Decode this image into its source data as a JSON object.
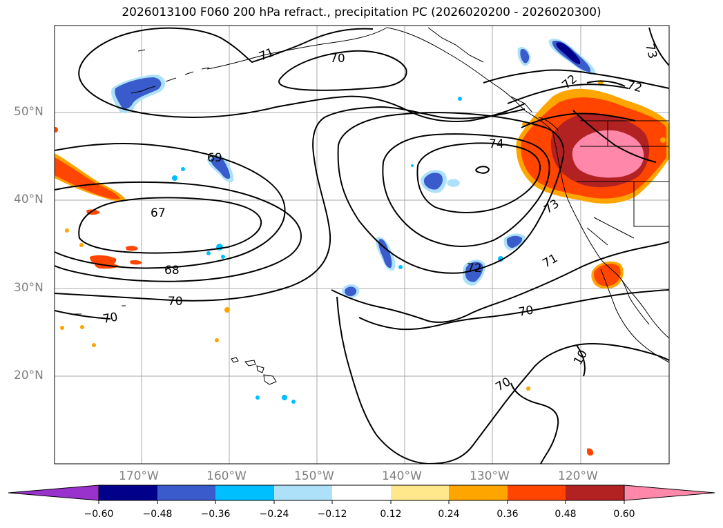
{
  "title": "2026013100 F060 200 hPa refract., precipitation PC (2026020200 - 2026020300)",
  "axes": {
    "lat_labels": [
      "50°N",
      "40°N",
      "30°N",
      "20°N"
    ],
    "lon_labels": [
      "170°W",
      "160°W",
      "150°W",
      "140°W",
      "130°W",
      "120°W"
    ]
  },
  "contour_labels": [
    "71",
    "70",
    "72",
    "72",
    "73",
    "74",
    "69",
    "67",
    "68",
    "70",
    "70",
    "72",
    "73",
    "71",
    "70",
    "70",
    "10"
  ],
  "colorbar": {
    "tick_labels": [
      "−0.60",
      "−0.48",
      "−0.36",
      "−0.24",
      "−0.12",
      "0.12",
      "0.24",
      "0.36",
      "0.48",
      "0.60"
    ],
    "colors": [
      "#9932CC",
      "#00008B",
      "#3A5BCC",
      "#00BFFF",
      "#ADE1FA",
      "#FFFFFF",
      "#FFE88C",
      "#FFA500",
      "#FF4500",
      "#B22222",
      "#FF88AA"
    ]
  },
  "colors": {
    "positive_light": "#FFE88C",
    "positive_orange": "#FFA500",
    "positive_red": "#FF4500",
    "positive_dark": "#B22222",
    "positive_pink": "#FF88AA",
    "negative_light": "#ADE1FA",
    "negative_cyan": "#00BFFF",
    "negative_blue": "#3A5BCC",
    "negative_navy": "#00008B",
    "grid": "#aaaaaa",
    "contour": "#000000"
  }
}
